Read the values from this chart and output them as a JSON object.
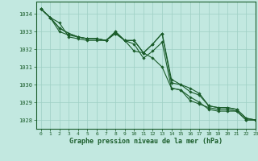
{
  "bg_color": "#c2e8e0",
  "line_color": "#1a5c2a",
  "grid_color": "#9ecfc4",
  "xlabel": "Graphe pression niveau de la mer (hPa)",
  "ylim": [
    1027.5,
    1034.7
  ],
  "xlim": [
    -0.5,
    23
  ],
  "yticks": [
    1028,
    1029,
    1030,
    1031,
    1032,
    1033,
    1034
  ],
  "xticks": [
    0,
    1,
    2,
    3,
    4,
    5,
    6,
    7,
    8,
    9,
    10,
    11,
    12,
    13,
    14,
    15,
    16,
    17,
    18,
    19,
    20,
    21,
    22,
    23
  ],
  "series": [
    [
      1034.3,
      1033.8,
      1033.5,
      1032.7,
      1032.6,
      1032.5,
      1032.5,
      1032.5,
      1032.9,
      1032.5,
      1032.3,
      1031.5,
      1031.9,
      1032.4,
      1029.8,
      1029.7,
      1029.3,
      1029.0,
      1028.6,
      1028.5,
      1028.5,
      1028.5,
      1028.0,
      1028.0
    ],
    [
      1034.3,
      1033.8,
      1033.2,
      1032.9,
      1032.7,
      1032.6,
      1032.6,
      1032.5,
      1032.9,
      1032.5,
      1031.9,
      1031.8,
      1031.5,
      1031.0,
      1029.8,
      1029.7,
      1029.1,
      1028.9,
      1028.7,
      1028.6,
      1028.6,
      1028.5,
      1028.0,
      1028.0
    ],
    [
      1034.3,
      1033.8,
      1033.2,
      1032.9,
      1032.7,
      1032.6,
      1032.6,
      1032.5,
      1033.0,
      1032.5,
      1032.5,
      1031.8,
      1032.3,
      1032.9,
      1030.1,
      1030.0,
      1029.6,
      1029.4,
      1028.8,
      1028.7,
      1028.7,
      1028.6,
      1028.1,
      1028.0
    ],
    [
      1034.3,
      1033.8,
      1033.0,
      1032.8,
      1032.7,
      1032.6,
      1032.6,
      1032.5,
      1033.0,
      1032.5,
      1032.5,
      1031.8,
      1032.3,
      1032.9,
      1030.3,
      1030.0,
      1029.8,
      1029.5,
      1028.8,
      1028.7,
      1028.7,
      1028.6,
      1028.1,
      1028.0
    ]
  ]
}
